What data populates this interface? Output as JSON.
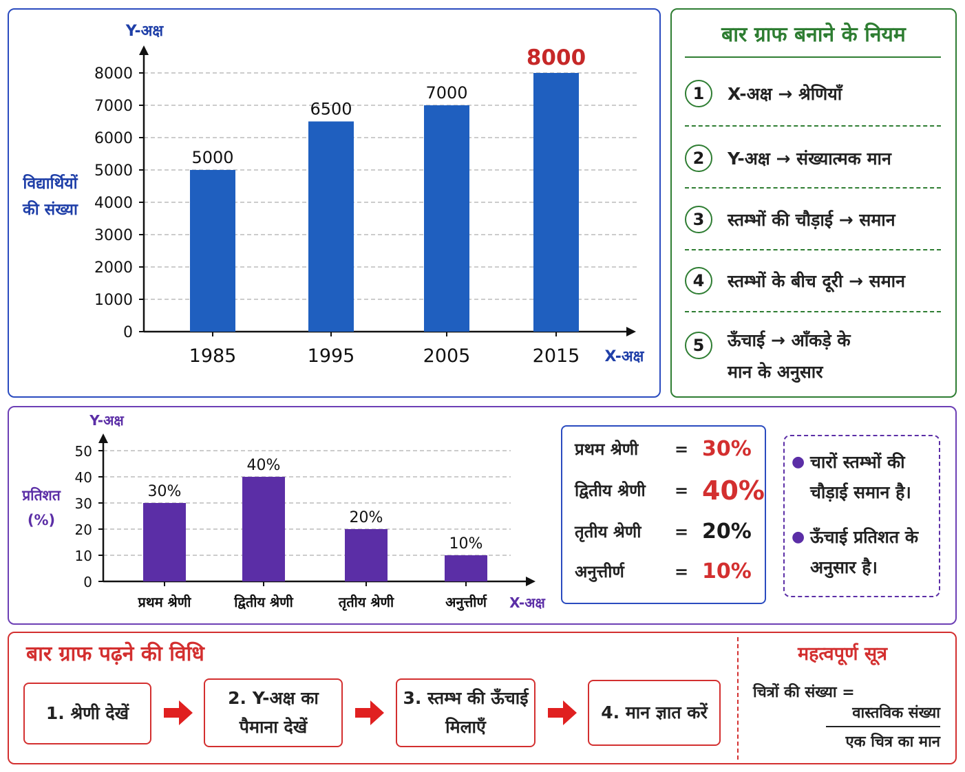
{
  "chart_data": [
    {
      "type": "bar",
      "title": "",
      "categories": [
        "1985",
        "1995",
        "2005",
        "2015"
      ],
      "values": [
        5000,
        6500,
        7000,
        8000
      ],
      "value_labels": [
        "5000",
        "6500",
        "7000",
        "8000"
      ],
      "yticks": [
        "0",
        "1000",
        "2000",
        "3000",
        "4000",
        "5000",
        "6000",
        "7000",
        "8000"
      ],
      "ylim": [
        0,
        8000
      ],
      "xlabel": "X-अक्ष",
      "ylabel_axis": "Y-अक्ष",
      "ylabel_lines": [
        "विद्यार्थियों",
        "की संख्या"
      ],
      "grid": true,
      "bar_color": "#1f5fbf",
      "highlight_color": "#c62828"
    },
    {
      "type": "bar",
      "title": "",
      "categories": [
        "प्रथम श्रेणी",
        "द्वितीय श्रेणी",
        "तृतीय श्रेणी",
        "अनुत्तीर्ण"
      ],
      "values": [
        30,
        40,
        20,
        10
      ],
      "value_labels": [
        "30%",
        "40%",
        "20%",
        "10%"
      ],
      "yticks": [
        "0",
        "10",
        "20",
        "30",
        "40",
        "50"
      ],
      "ylim": [
        0,
        50
      ],
      "xlabel": "X-अक्ष",
      "ylabel_axis": "Y-अक्ष",
      "ylabel_lines": [
        "प्रतिशत",
        "(%)"
      ],
      "grid": true,
      "bar_color": "#5b2ea6"
    }
  ],
  "rules": {
    "title": "बार ग्राफ बनाने के नियम",
    "items": [
      {
        "num": "1",
        "lines": [
          "X-अक्ष → श्रेणियाँ"
        ]
      },
      {
        "num": "2",
        "lines": [
          "Y-अक्ष → संख्यात्मक मान"
        ]
      },
      {
        "num": "3",
        "lines": [
          "स्तम्भों की चौड़ाई → समान"
        ]
      },
      {
        "num": "4",
        "lines": [
          "स्तम्भों के बीच दूरी → समान"
        ]
      },
      {
        "num": "5",
        "lines": [
          "ऊँचाई → आँकड़े के",
          "मान के अनुसार"
        ]
      }
    ]
  },
  "values_box": {
    "rows": [
      {
        "label": "प्रथम श्रेणी",
        "eq": "=",
        "value": "30%",
        "color": "#d32f2f"
      },
      {
        "label": "द्वितीय श्रेणी",
        "eq": "=",
        "value": "40%",
        "color": "#d32f2f"
      },
      {
        "label": "तृतीय श्रेणी",
        "eq": "=",
        "value": "20%",
        "color": "#1a1a1a"
      },
      {
        "label": "अनुत्तीर्ण",
        "eq": "=",
        "value": "10%",
        "color": "#d32f2f"
      }
    ]
  },
  "notes": [
    "चारों स्तम्भों की चौड़ाई समान है।",
    "ऊँचाई प्रतिशत के अनुसार है।"
  ],
  "reading": {
    "title": "बार ग्राफ पढ़ने की विधि",
    "steps": [
      "1. श्रेणी देखें",
      "2. Y-अक्ष का पैमाना देखें",
      "3. स्तम्भ की ऊँचाई मिलाएँ",
      "4. मान ज्ञात करें"
    ]
  },
  "formula": {
    "title": "महत्वपूर्ण सूत्र",
    "left": "चित्रों की संख्या =",
    "numerator": "वास्तविक संख्या",
    "denominator": "एक चित्र का मान"
  }
}
